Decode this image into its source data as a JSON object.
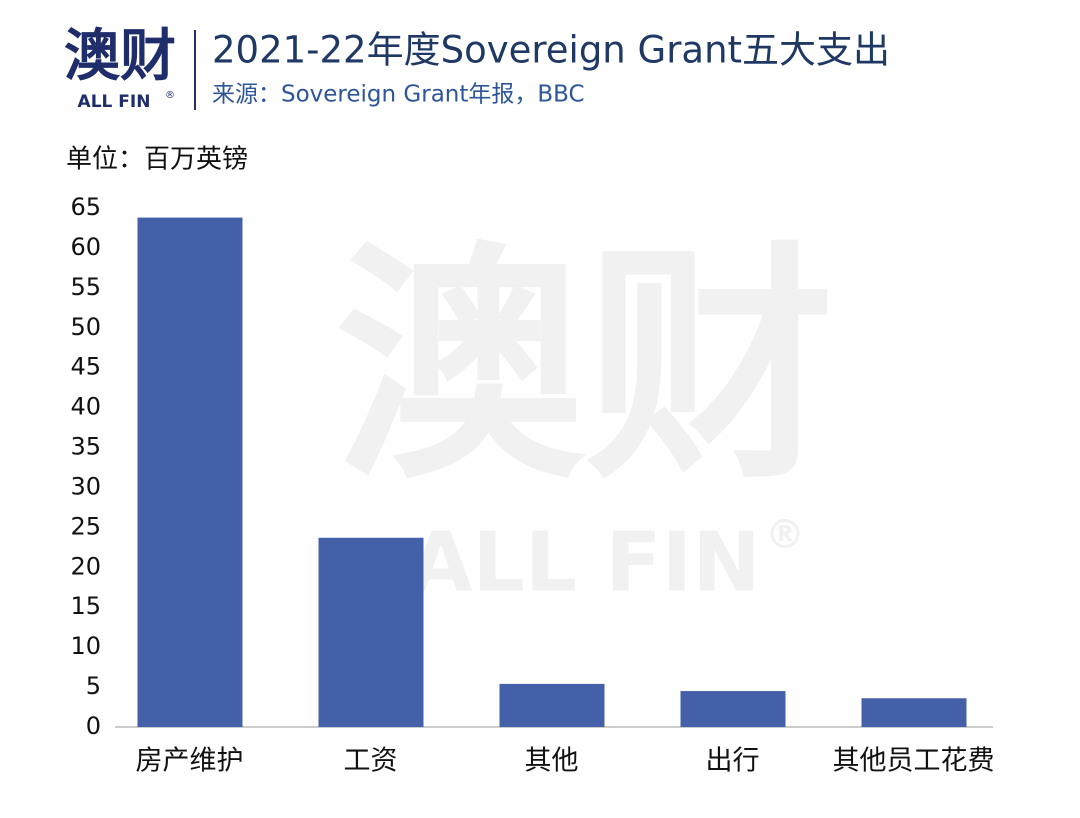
{
  "logo": {
    "name": "澳财",
    "brand": "ALL FIN",
    "mark": "®"
  },
  "chart_data": {
    "type": "bar",
    "title": "2021-22年度Sovereign Grant五大支出",
    "subtitle": "来源：Sovereign Grant年报，BBC",
    "unit_label": "单位：百万英镑",
    "categories": [
      "房产维护",
      "工资",
      "其他",
      "出行",
      "其他员工花费"
    ],
    "values": [
      63.8,
      23.7,
      5.4,
      4.5,
      3.6
    ],
    "color": "#4360a8",
    "ylim": [
      0,
      65
    ],
    "yticks": [
      0,
      5,
      10,
      15,
      20,
      25,
      30,
      35,
      40,
      45,
      50,
      55,
      60,
      65
    ],
    "grid": false
  }
}
